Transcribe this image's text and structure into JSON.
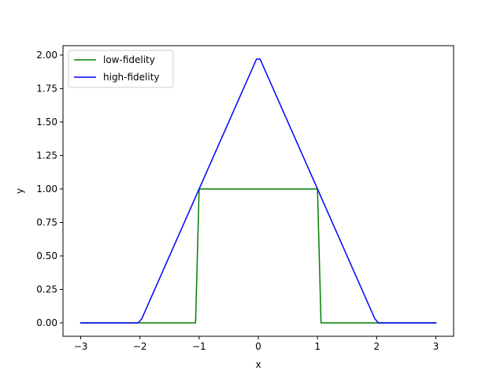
{
  "chart_data": {
    "type": "line",
    "title": "",
    "xlabel": "x",
    "ylabel": "y",
    "xlim": [
      -3.3,
      3.3
    ],
    "ylim": [
      -0.1,
      2.07
    ],
    "grid": false,
    "legend_position": "upper-left",
    "x_ticks": [
      -3,
      -2,
      -1,
      0,
      1,
      2,
      3
    ],
    "x_tick_labels": [
      "−3",
      "−2",
      "−1",
      "0",
      "1",
      "2",
      "3"
    ],
    "y_ticks": [
      0,
      0.25,
      0.5,
      0.75,
      1.0,
      1.25,
      1.5,
      1.75,
      2.0
    ],
    "y_tick_labels": [
      "0.00",
      "0.25",
      "0.50",
      "0.75",
      "1.00",
      "1.25",
      "1.50",
      "1.75",
      "2.00"
    ],
    "series": [
      {
        "name": "low-fidelity",
        "color": "#008000",
        "x": [
          -3.0,
          -1.06,
          -1.0,
          1.0,
          1.06,
          3.0
        ],
        "y": [
          0.0,
          0.0,
          1.0,
          1.0,
          0.0,
          0.0
        ]
      },
      {
        "name": "high-fidelity",
        "color": "#0000ff",
        "x": [
          -3.0,
          -2.03,
          -1.97,
          -1.0,
          -0.03,
          0.03,
          1.0,
          1.97,
          2.03,
          3.0
        ],
        "y": [
          0.0,
          0.0,
          0.03,
          1.0,
          1.97,
          1.97,
          1.0,
          0.03,
          0.0,
          0.0
        ]
      }
    ]
  }
}
